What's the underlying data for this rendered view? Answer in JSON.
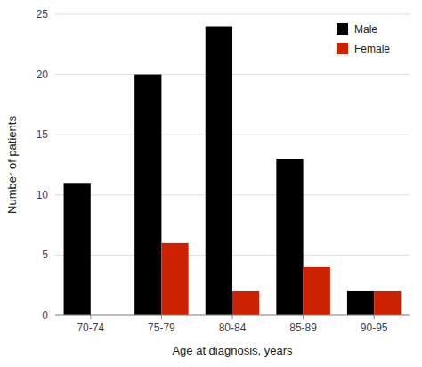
{
  "chart_data": {
    "type": "bar",
    "categories": [
      "70-74",
      "75-79",
      "80-84",
      "85-89",
      "90-95"
    ],
    "series": [
      {
        "name": "Male",
        "color": "#000000",
        "values": [
          11,
          20,
          24,
          13,
          2
        ]
      },
      {
        "name": "Female",
        "color": "#cc2200",
        "values": [
          0,
          6,
          2,
          4,
          2
        ]
      }
    ],
    "xlabel": "Age at diagnosis, years",
    "ylabel": "Number of patients",
    "ylim": [
      0,
      25
    ],
    "yticks": [
      0,
      5,
      10,
      15,
      20,
      25
    ],
    "grid": true,
    "legend": "upper right"
  }
}
